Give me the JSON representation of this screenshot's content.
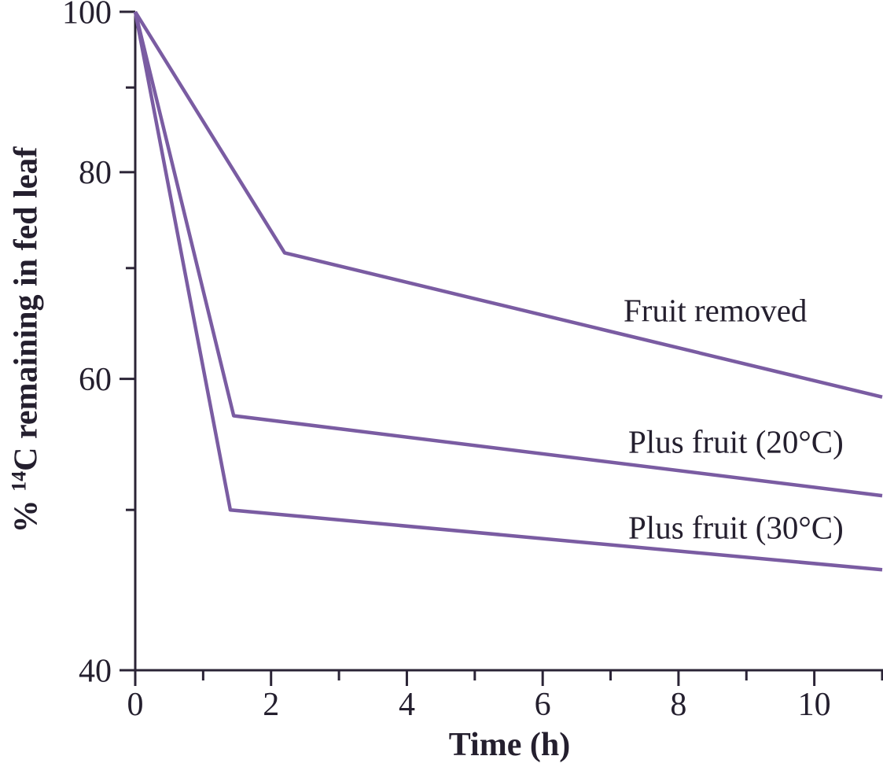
{
  "chart_data": {
    "type": "line",
    "title": "",
    "xlabel": "Time (h)",
    "ylabel": {
      "prefix": "% ",
      "superscript": "14",
      "rest": "C remaining in fed leaf"
    },
    "x_axis": {
      "min": 0,
      "max": 11,
      "major_ticks": [
        0,
        2,
        4,
        6,
        8,
        10
      ],
      "minor_ticks": [
        1,
        3,
        5,
        7,
        9,
        11
      ],
      "tick_labels": [
        "0",
        "2",
        "4",
        "6",
        "8",
        "10"
      ]
    },
    "y_axis": {
      "min": 40,
      "max": 100,
      "scale": "log",
      "major_ticks": [
        100,
        80,
        60,
        40
      ],
      "minor_ticks": [
        90,
        70,
        50
      ],
      "tick_labels": [
        "100",
        "80",
        "60",
        "40"
      ]
    },
    "series": [
      {
        "name": "Fruit removed",
        "points": [
          [
            0,
            100
          ],
          [
            2.2,
            71.5
          ],
          [
            11,
            58.5
          ]
        ]
      },
      {
        "name": "Plus fruit (20°C)",
        "points": [
          [
            0,
            100
          ],
          [
            1.45,
            57
          ],
          [
            11,
            51
          ]
        ]
      },
      {
        "name": "Plus fruit (30°C)",
        "points": [
          [
            0,
            100
          ],
          [
            1.4,
            50
          ],
          [
            11,
            46
          ]
        ]
      }
    ],
    "grid": false,
    "legend": "inline-labels",
    "colors": {
      "line": "#7a5ca2",
      "axis": "#2b2436",
      "text": "#241f2e"
    }
  }
}
